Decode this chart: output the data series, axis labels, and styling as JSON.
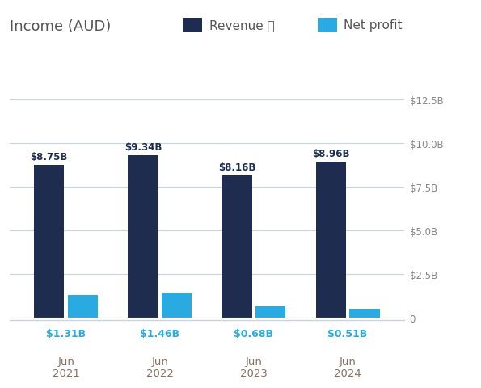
{
  "title": "Income (AUD)",
  "categories": [
    "Jun\n2021",
    "Jun\n2022",
    "Jun\n2023",
    "Jun\n2024"
  ],
  "revenue": [
    8.75,
    9.34,
    8.16,
    8.96
  ],
  "net_profit": [
    1.31,
    1.46,
    0.68,
    0.51
  ],
  "revenue_labels": [
    "$8.75B",
    "$9.34B",
    "$8.16B",
    "$8.96B"
  ],
  "net_profit_labels": [
    "$1.31B",
    "$1.46B",
    "$0.68B",
    "$0.51B"
  ],
  "revenue_color": "#1e2d4f",
  "net_profit_color": "#29abe2",
  "background_color": "#ffffff",
  "grid_color": "#c8d4e0",
  "yticks": [
    0,
    2.5,
    5.0,
    7.5,
    10.0,
    12.5
  ],
  "ytick_labels": [
    "0",
    "$2.5B",
    "$5.0B",
    "$7.5B",
    "$10.0B",
    "$12.5B"
  ],
  "ylim": [
    0,
    13.8
  ],
  "legend_revenue": "Revenue ⓘ",
  "legend_net_profit": "Net profit",
  "bar_width": 0.32,
  "revenue_label_color": "#1e2d4f",
  "net_profit_label_color": "#29abe2",
  "tick_label_color": "#8a7060",
  "ytick_label_color": "#888888"
}
